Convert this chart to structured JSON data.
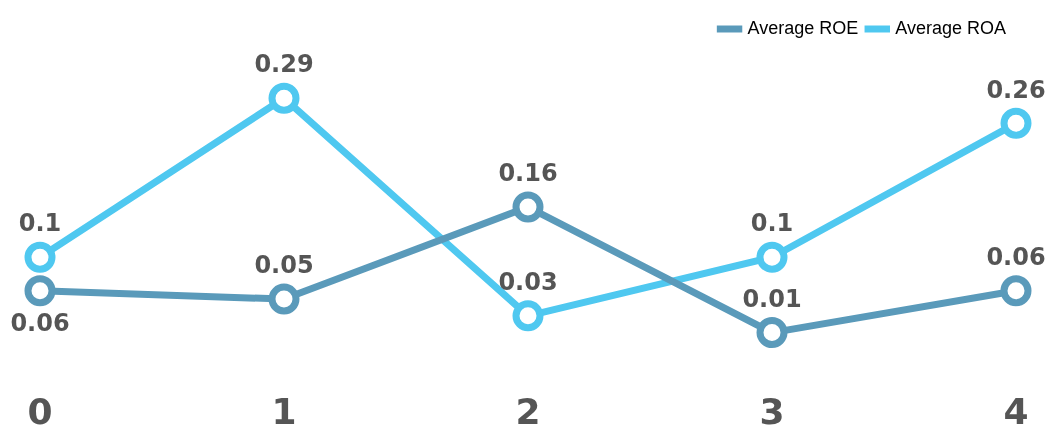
{
  "chart_data": {
    "type": "line",
    "categories": [
      "0",
      "1",
      "2",
      "3",
      "4"
    ],
    "series": [
      {
        "name": "Average ROE",
        "color": "#5a9aba",
        "values": [
          0.06,
          0.05,
          0.16,
          0.01,
          0.06
        ]
      },
      {
        "name": "Average ROA",
        "color": "#4fc8f0",
        "values": [
          0.1,
          0.29,
          0.03,
          0.1,
          0.26
        ]
      }
    ],
    "data_labels": true,
    "marker": "circle",
    "line_style": "solid",
    "legend": "top right",
    "grid": false,
    "tick_labels": "x"
  }
}
